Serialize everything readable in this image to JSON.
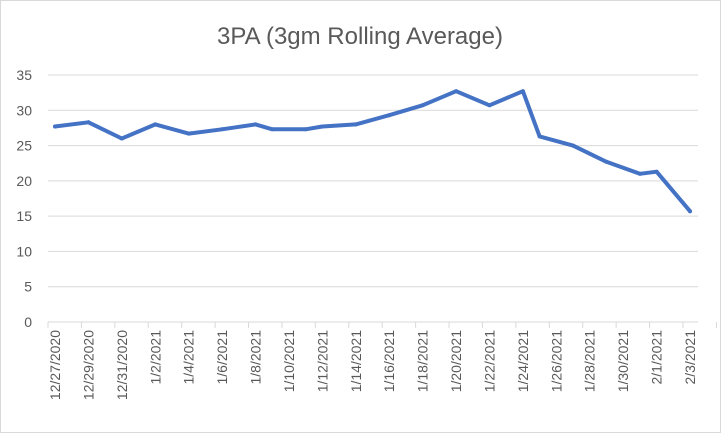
{
  "chart_data": {
    "type": "line",
    "title": "3PA (3gm Rolling Average)",
    "xlabel": "",
    "ylabel": "",
    "ylim": [
      0,
      35
    ],
    "yticks": [
      0,
      5,
      10,
      15,
      20,
      25,
      30,
      35
    ],
    "grid": true,
    "legend": "none",
    "x_tick_labels": [
      "12/27/2020",
      "12/29/2020",
      "12/31/2020",
      "1/2/2021",
      "1/4/2021",
      "1/6/2021",
      "1/8/2021",
      "1/10/2021",
      "1/12/2021",
      "1/14/2021",
      "1/16/2021",
      "1/18/2021",
      "1/20/2021",
      "1/22/2021",
      "1/24/2021",
      "1/26/2021",
      "1/28/2021",
      "1/30/2021",
      "2/1/2021",
      "2/3/2021"
    ],
    "series": [
      {
        "name": "3PA (3gm Rolling Average)",
        "color": "#4472c4",
        "points": [
          {
            "x": "12/27/2020",
            "y": 27.7
          },
          {
            "x": "12/29/2020",
            "y": 28.3
          },
          {
            "x": "12/31/2020",
            "y": 26.0
          },
          {
            "x": "1/2/2021",
            "y": 28.0
          },
          {
            "x": "1/4/2021",
            "y": 26.7
          },
          {
            "x": "1/6/2021",
            "y": 27.3
          },
          {
            "x": "1/8/2021",
            "y": 28.0
          },
          {
            "x": "1/9/2021",
            "y": 27.3
          },
          {
            "x": "1/11/2021",
            "y": 27.3
          },
          {
            "x": "1/12/2021",
            "y": 27.7
          },
          {
            "x": "1/14/2021",
            "y": 28.0
          },
          {
            "x": "1/16/2021",
            "y": 29.3
          },
          {
            "x": "1/18/2021",
            "y": 30.7
          },
          {
            "x": "1/20/2021",
            "y": 32.7
          },
          {
            "x": "1/22/2021",
            "y": 30.7
          },
          {
            "x": "1/24/2021",
            "y": 32.7
          },
          {
            "x": "1/25/2021",
            "y": 26.3
          },
          {
            "x": "1/27/2021",
            "y": 25.0
          },
          {
            "x": "1/29/2021",
            "y": 22.7
          },
          {
            "x": "1/31/2021",
            "y": 21.0
          },
          {
            "x": "2/1/2021",
            "y": 21.3
          },
          {
            "x": "2/3/2021",
            "y": 15.7
          }
        ]
      }
    ]
  }
}
